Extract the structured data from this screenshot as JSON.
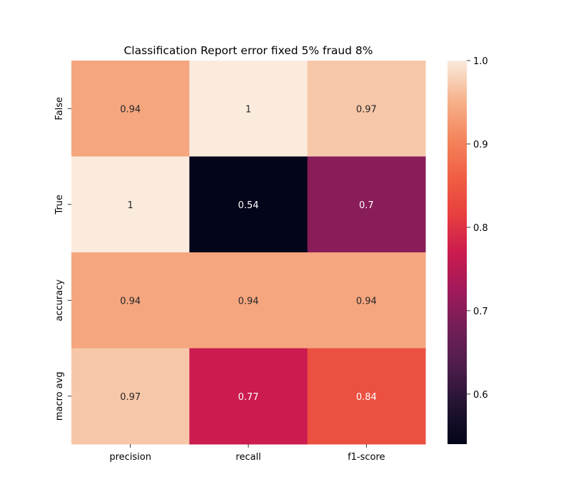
{
  "chart_data": {
    "type": "heatmap",
    "title": "Classification Report error fixed 5%  fraud 8%",
    "xlabel": "",
    "ylabel": "",
    "x_categories": [
      "precision",
      "recall",
      "f1-score"
    ],
    "y_categories": [
      "False",
      "True",
      "accuracy",
      "macro avg"
    ],
    "values": [
      [
        0.94,
        1.0,
        0.97
      ],
      [
        1.0,
        0.54,
        0.7
      ],
      [
        0.94,
        0.94,
        0.94
      ],
      [
        0.97,
        0.77,
        0.84
      ]
    ],
    "annotations": [
      [
        "0.94",
        "1",
        "0.97"
      ],
      [
        "1",
        "0.54",
        "0.7"
      ],
      [
        "0.94",
        "0.94",
        "0.94"
      ],
      [
        "0.97",
        "0.77",
        "0.84"
      ]
    ],
    "colorbar": {
      "vmin": 0.54,
      "vmax": 1.0,
      "ticks": [
        "0.6",
        "0.7",
        "0.8",
        "0.9",
        "1.0"
      ],
      "colormap": "rocket"
    },
    "grid": false,
    "legend": "colorbar-right"
  }
}
